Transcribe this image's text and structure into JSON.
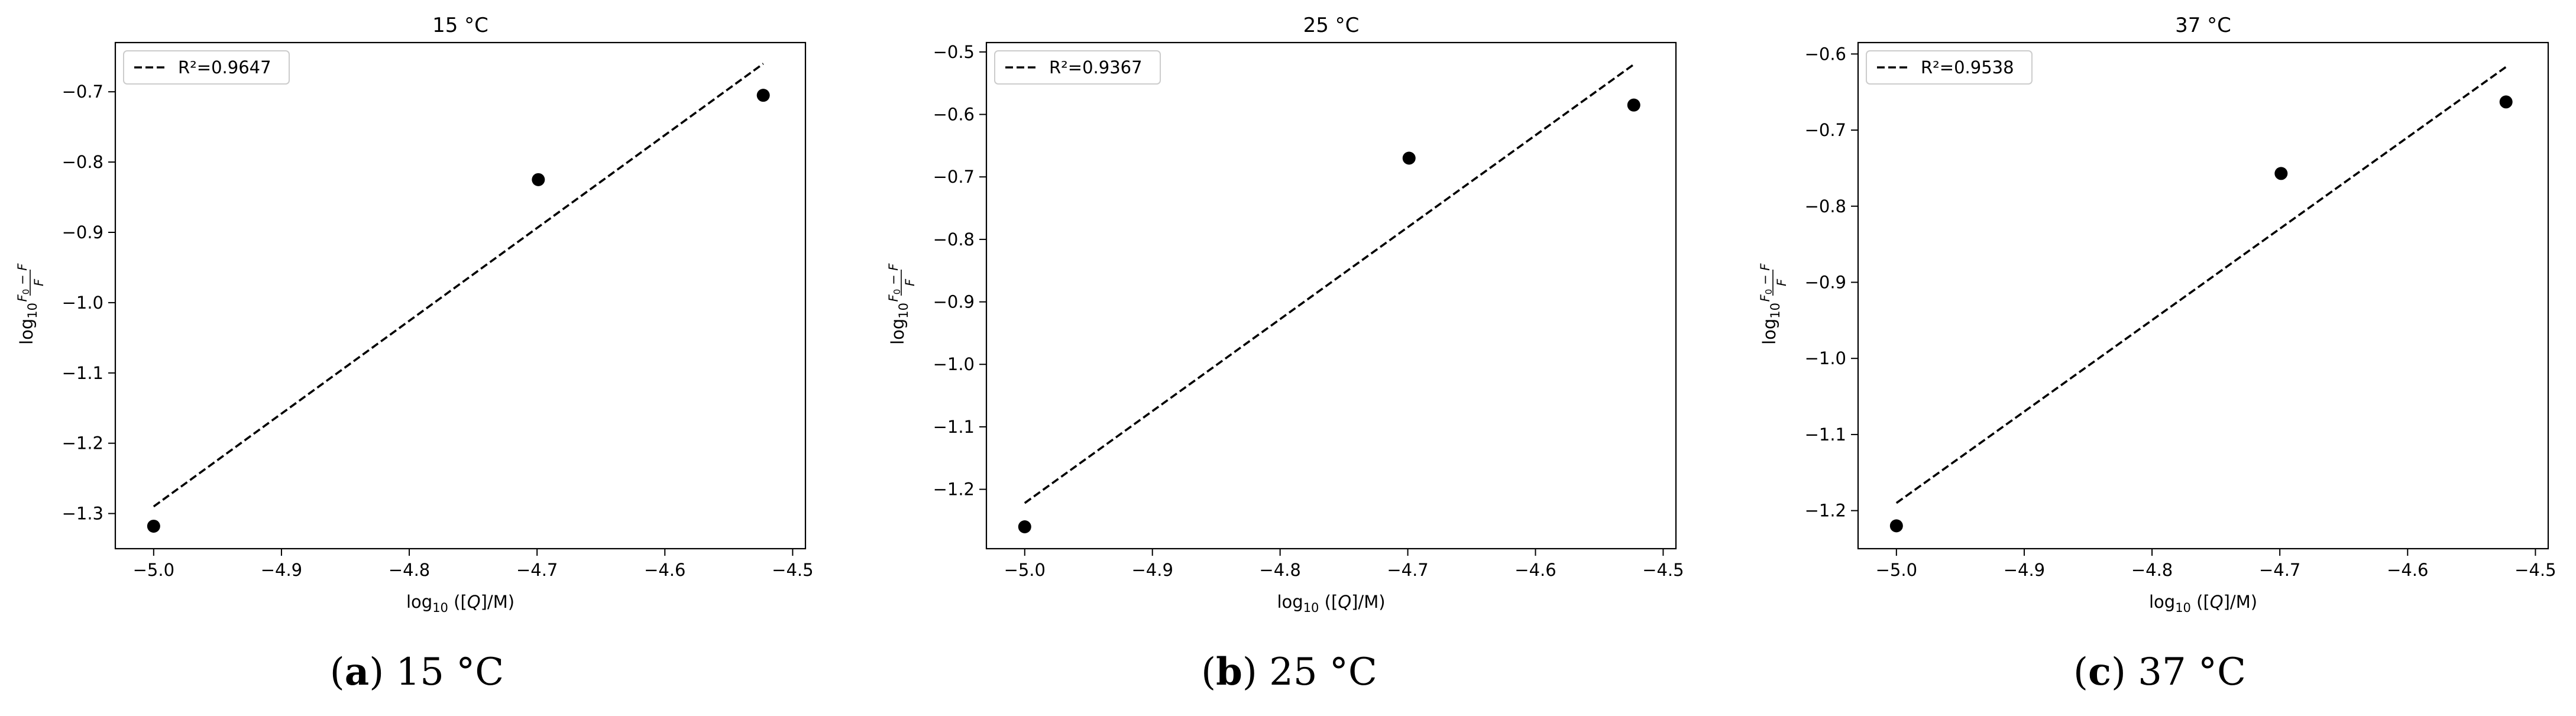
{
  "figure": {
    "panels": [
      {
        "letter": "a",
        "caption": "15 °C"
      },
      {
        "letter": "b",
        "caption": "25 °C"
      },
      {
        "letter": "c",
        "caption": "37 °C"
      }
    ]
  },
  "chart_data": [
    {
      "type": "scatter",
      "title": "15 °C",
      "xlabel": "log10 ([Q]/M)",
      "ylabel": "log10 (F0 − F)/F",
      "xlim": [
        -5.03,
        -4.49
      ],
      "ylim": [
        -1.35,
        -0.63
      ],
      "xticks": [
        -5.0,
        -4.9,
        -4.8,
        -4.7,
        -4.6,
        -4.5
      ],
      "xtick_labels": [
        "−5.0",
        "−4.9",
        "−4.8",
        "−4.7",
        "−4.6",
        "−4.5"
      ],
      "yticks": [
        -1.3,
        -1.2,
        -1.1,
        -1.0,
        -0.9,
        -0.8,
        -0.7
      ],
      "ytick_labels": [
        "−1.3",
        "−1.2",
        "−1.1",
        "−1.0",
        "−0.9",
        "−0.8",
        "−0.7"
      ],
      "grid": false,
      "legend": {
        "position": "top-left",
        "entries": [
          {
            "label": "R²=0.9647",
            "style": "dashed"
          }
        ]
      },
      "series": [
        {
          "kind": "points",
          "x": [
            -5.0,
            -4.699,
            -4.523
          ],
          "y": [
            -1.318,
            -0.825,
            -0.705
          ],
          "color": "#000000"
        },
        {
          "kind": "fit",
          "name": "R²=0.9647",
          "x": [
            -5.0,
            -4.523
          ],
          "y": [
            -1.29,
            -0.66
          ],
          "color": "#000000",
          "linestyle": "dashed"
        }
      ]
    },
    {
      "type": "scatter",
      "title": "25 °C",
      "xlabel": "log10 ([Q]/M)",
      "ylabel": "log10 (F0 − F)/F",
      "xlim": [
        -5.03,
        -4.49
      ],
      "ylim": [
        -1.295,
        -0.485
      ],
      "xticks": [
        -5.0,
        -4.9,
        -4.8,
        -4.7,
        -4.6,
        -4.5
      ],
      "xtick_labels": [
        "−5.0",
        "−4.9",
        "−4.8",
        "−4.7",
        "−4.6",
        "−4.5"
      ],
      "yticks": [
        -1.2,
        -1.1,
        -1.0,
        -0.9,
        -0.8,
        -0.7,
        -0.6,
        -0.5
      ],
      "ytick_labels": [
        "−1.2",
        "−1.1",
        "−1.0",
        "−0.9",
        "−0.8",
        "−0.7",
        "−0.6",
        "−0.5"
      ],
      "grid": false,
      "legend": {
        "position": "top-left",
        "entries": [
          {
            "label": "R²=0.9367",
            "style": "dashed"
          }
        ]
      },
      "series": [
        {
          "kind": "points",
          "x": [
            -5.0,
            -4.699,
            -4.523
          ],
          "y": [
            -1.26,
            -0.67,
            -0.585
          ],
          "color": "#000000"
        },
        {
          "kind": "fit",
          "name": "R²=0.9367",
          "x": [
            -5.0,
            -4.523
          ],
          "y": [
            -1.222,
            -0.52
          ],
          "color": "#000000",
          "linestyle": "dashed"
        }
      ]
    },
    {
      "type": "scatter",
      "title": "37 °C",
      "xlabel": "log10 ([Q]/M)",
      "ylabel": "log10 (F0 − F)/F",
      "xlim": [
        -5.03,
        -4.49
      ],
      "ylim": [
        -1.25,
        -0.585
      ],
      "xticks": [
        -5.0,
        -4.9,
        -4.8,
        -4.7,
        -4.6,
        -4.5
      ],
      "xtick_labels": [
        "−5.0",
        "−4.9",
        "−4.8",
        "−4.7",
        "−4.6",
        "−4.5"
      ],
      "yticks": [
        -1.2,
        -1.1,
        -1.0,
        -0.9,
        -0.8,
        -0.7,
        -0.6
      ],
      "ytick_labels": [
        "−1.2",
        "−1.1",
        "−1.0",
        "−0.9",
        "−0.8",
        "−0.7",
        "−0.6"
      ],
      "grid": false,
      "legend": {
        "position": "top-left",
        "entries": [
          {
            "label": "R²=0.9538",
            "style": "dashed"
          }
        ]
      },
      "series": [
        {
          "kind": "points",
          "x": [
            -5.0,
            -4.699,
            -4.523
          ],
          "y": [
            -1.22,
            -0.757,
            -0.663
          ],
          "color": "#000000"
        },
        {
          "kind": "fit",
          "name": "R²=0.9538",
          "x": [
            -5.0,
            -4.523
          ],
          "y": [
            -1.19,
            -0.617
          ],
          "color": "#000000",
          "linestyle": "dashed"
        }
      ]
    }
  ]
}
